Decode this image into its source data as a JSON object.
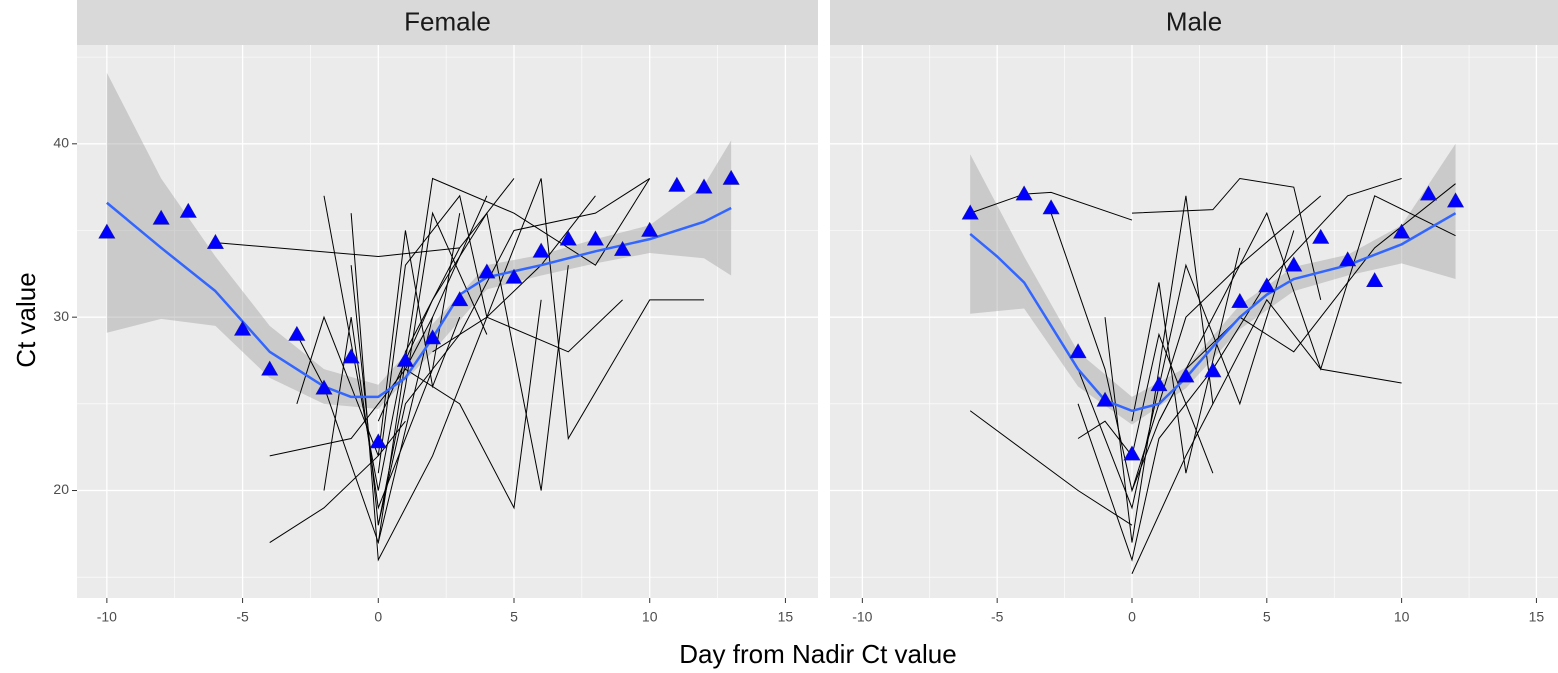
{
  "ylabel": "Ct value",
  "xlabel": "Day from Nadir Ct value",
  "chart_data": [
    {
      "type": "line",
      "title": "Female",
      "xlim": [
        -11.1,
        16.2
      ],
      "ylim": [
        13.8,
        45.7
      ],
      "xticks": [
        -10,
        -5,
        0,
        5,
        10,
        15
      ],
      "yticks": [
        20,
        30,
        40
      ],
      "minor_xgrid": [
        -7.5,
        -2.5,
        2.5,
        7.5,
        12.5
      ],
      "minor_ygrid": [
        15,
        25,
        35,
        45
      ],
      "subjects": {
        "color": "#000000",
        "lines": [
          {
            "x": [
              -3,
              -2,
              0,
              2,
              4
            ],
            "values": [
              29,
              26,
              17,
              30,
              37
            ]
          },
          {
            "x": [
              -2,
              0,
              1,
              3,
              5
            ],
            "values": [
              37,
              20,
              28,
              34,
              38
            ]
          },
          {
            "x": [
              -1,
              0,
              2,
              4,
              6,
              8
            ],
            "values": [
              36,
              16,
              22,
              30,
              33,
              37
            ]
          },
          {
            "x": [
              0,
              1,
              3,
              5,
              8,
              10
            ],
            "values": [
              18,
              25,
              29,
              35,
              36,
              38
            ]
          },
          {
            "x": [
              -2,
              -1,
              0,
              2,
              3
            ],
            "values": [
              20,
              30,
              19,
              27,
              36
            ]
          },
          {
            "x": [
              -4,
              -2,
              0,
              1
            ],
            "values": [
              17,
              19,
              22,
              24
            ]
          },
          {
            "x": [
              -4,
              -1,
              1,
              2
            ],
            "values": [
              22,
              23,
              27,
              30
            ]
          },
          {
            "x": [
              0,
              2,
              4,
              6,
              7
            ],
            "values": [
              24,
              31,
              36,
              20,
              33
            ]
          },
          {
            "x": [
              1,
              3,
              5,
              6
            ],
            "values": [
              27,
              25,
              19,
              31
            ]
          },
          {
            "x": [
              -6,
              0,
              3
            ],
            "values": [
              34.3,
              33.5,
              34
            ]
          },
          {
            "x": [
              0,
              1,
              3,
              4,
              7,
              9
            ],
            "values": [
              21,
              33,
              37,
              30,
              28,
              31
            ]
          },
          {
            "x": [
              2,
              4,
              6,
              7,
              10,
              12
            ],
            "values": [
              28,
              30,
              38,
              23,
              31,
              31
            ]
          },
          {
            "x": [
              0,
              2,
              5,
              8,
              10
            ],
            "values": [
              17,
              38,
              36,
              33,
              38
            ]
          },
          {
            "x": [
              -1,
              0,
              1,
              2,
              4
            ],
            "values": [
              33,
              18,
              26,
              36,
              29
            ]
          },
          {
            "x": [
              -3,
              -2,
              0,
              1,
              2,
              3
            ],
            "values": [
              25,
              30,
              22,
              35,
              26,
              30
            ]
          }
        ]
      },
      "ribbon": {
        "color": "#999999",
        "x": [
          -10,
          -8,
          -6,
          -4,
          -2,
          0,
          2,
          4,
          6,
          8,
          10,
          12,
          13
        ],
        "lower": [
          29.1,
          29.9,
          29.5,
          26.5,
          25,
          24.7,
          28,
          31.6,
          32.4,
          33.1,
          33.7,
          33.4,
          32.4
        ],
        "upper": [
          44.1,
          38,
          33.5,
          29.5,
          27,
          26.1,
          29.6,
          33,
          33.6,
          34.5,
          35.3,
          37.6,
          40.2
        ]
      },
      "smooth": {
        "color": "#3366ff",
        "x": [
          -10,
          -8,
          -6,
          -4,
          -2,
          -1,
          0,
          1,
          2,
          3,
          4,
          6,
          8,
          10,
          12,
          13
        ],
        "values": [
          36.6,
          34,
          31.5,
          28,
          26,
          25.4,
          25.4,
          26.5,
          28.8,
          31.3,
          32.3,
          33,
          33.8,
          34.5,
          35.5,
          36.3
        ]
      },
      "mean": {
        "color": "#0000ff",
        "x": [
          -10,
          -8,
          -7,
          -6,
          -5,
          -4,
          -3,
          -2,
          -1,
          0,
          1,
          2,
          3,
          4,
          5,
          6,
          7,
          8,
          9,
          10,
          11,
          12,
          13
        ],
        "values": [
          34.9,
          35.7,
          36.1,
          34.3,
          29.3,
          27,
          29,
          25.9,
          27.7,
          22.8,
          27.5,
          28.8,
          31,
          32.6,
          32.3,
          33.8,
          34.5,
          34.5,
          33.9,
          35,
          37.6,
          37.5,
          38
        ]
      }
    },
    {
      "type": "line",
      "title": "Male",
      "xlim": [
        -11.2,
        15.8
      ],
      "ylim": [
        13.8,
        45.7
      ],
      "xticks": [
        -10,
        -5,
        0,
        5,
        10,
        15
      ],
      "yticks": [
        20,
        30,
        40
      ],
      "minor_xgrid": [
        -7.5,
        -2.5,
        2.5,
        7.5,
        12.5
      ],
      "minor_ygrid": [
        15,
        25,
        35,
        45
      ],
      "subjects": {
        "color": "#000000",
        "lines": [
          {
            "x": [
              -6,
              -2,
              0
            ],
            "values": [
              24.6,
              20,
              18
            ]
          },
          {
            "x": [
              -6,
              -4,
              -3,
              0
            ],
            "values": [
              36,
              37.1,
              37.2,
              35.6
            ]
          },
          {
            "x": [
              -3,
              -1,
              0,
              2,
              4,
              7
            ],
            "values": [
              36,
              27,
              20,
              30,
              33,
              37
            ]
          },
          {
            "x": [
              -2,
              0,
              1,
              3,
              5,
              8,
              10
            ],
            "values": [
              25,
              16,
              23,
              27,
              32,
              37,
              38
            ]
          },
          {
            "x": [
              0,
              1,
              2,
              4,
              6,
              9,
              12
            ],
            "values": [
              20,
              24,
              27,
              30,
              28,
              34,
              37.7
            ]
          },
          {
            "x": [
              0,
              3,
              4,
              6,
              7
            ],
            "values": [
              36,
              36.2,
              38,
              37.5,
              31
            ]
          },
          {
            "x": [
              -1,
              0,
              2,
              3
            ],
            "values": [
              30,
              17,
              37,
              25
            ]
          },
          {
            "x": [
              0,
              2,
              5,
              7,
              10
            ],
            "values": [
              15.2,
              22,
              31,
              27,
              26.2
            ]
          },
          {
            "x": [
              -2,
              -1,
              0,
              1,
              3
            ],
            "values": [
              23,
              24,
              22,
              29,
              21
            ]
          },
          {
            "x": [
              1,
              3,
              5,
              7,
              9,
              12
            ],
            "values": [
              24,
              30,
              36,
              27,
              37,
              34.7
            ]
          },
          {
            "x": [
              -2,
              0,
              2,
              4,
              6
            ],
            "values": [
              27,
              19,
              33,
              25,
              35
            ]
          },
          {
            "x": [
              0,
              1,
              2,
              4
            ],
            "values": [
              24,
              32,
              21,
              34
            ]
          }
        ]
      },
      "ribbon": {
        "color": "#999999",
        "x": [
          -6,
          -4,
          -2,
          0,
          2,
          4,
          6,
          8,
          10,
          12
        ],
        "lower": [
          30.2,
          30.5,
          26,
          23.8,
          25.9,
          29.3,
          31.5,
          32.4,
          33.1,
          32.2
        ],
        "upper": [
          39.4,
          33.5,
          28,
          25.4,
          27.1,
          30.7,
          32.9,
          33.6,
          35.3,
          40
        ]
      },
      "smooth": {
        "color": "#3366ff",
        "x": [
          -6,
          -5,
          -4,
          -3,
          -2,
          -1,
          0,
          1,
          2,
          3,
          4,
          5,
          6,
          8,
          10,
          12
        ],
        "values": [
          34.8,
          33.5,
          32,
          29.5,
          27,
          25.2,
          24.6,
          25,
          26.5,
          28.3,
          30,
          31.3,
          32.2,
          33,
          34.2,
          36
        ]
      },
      "mean": {
        "color": "#0000ff",
        "x": [
          -6,
          -4,
          -3,
          -2,
          -1,
          0,
          1,
          2,
          3,
          4,
          5,
          6,
          7,
          8,
          9,
          10,
          11,
          12
        ],
        "values": [
          36,
          37.1,
          36.3,
          28,
          25.2,
          22.1,
          26.1,
          26.6,
          26.9,
          30.9,
          31.8,
          33,
          34.6,
          33.3,
          32.1,
          34.9,
          37.1,
          36.7
        ]
      }
    }
  ]
}
